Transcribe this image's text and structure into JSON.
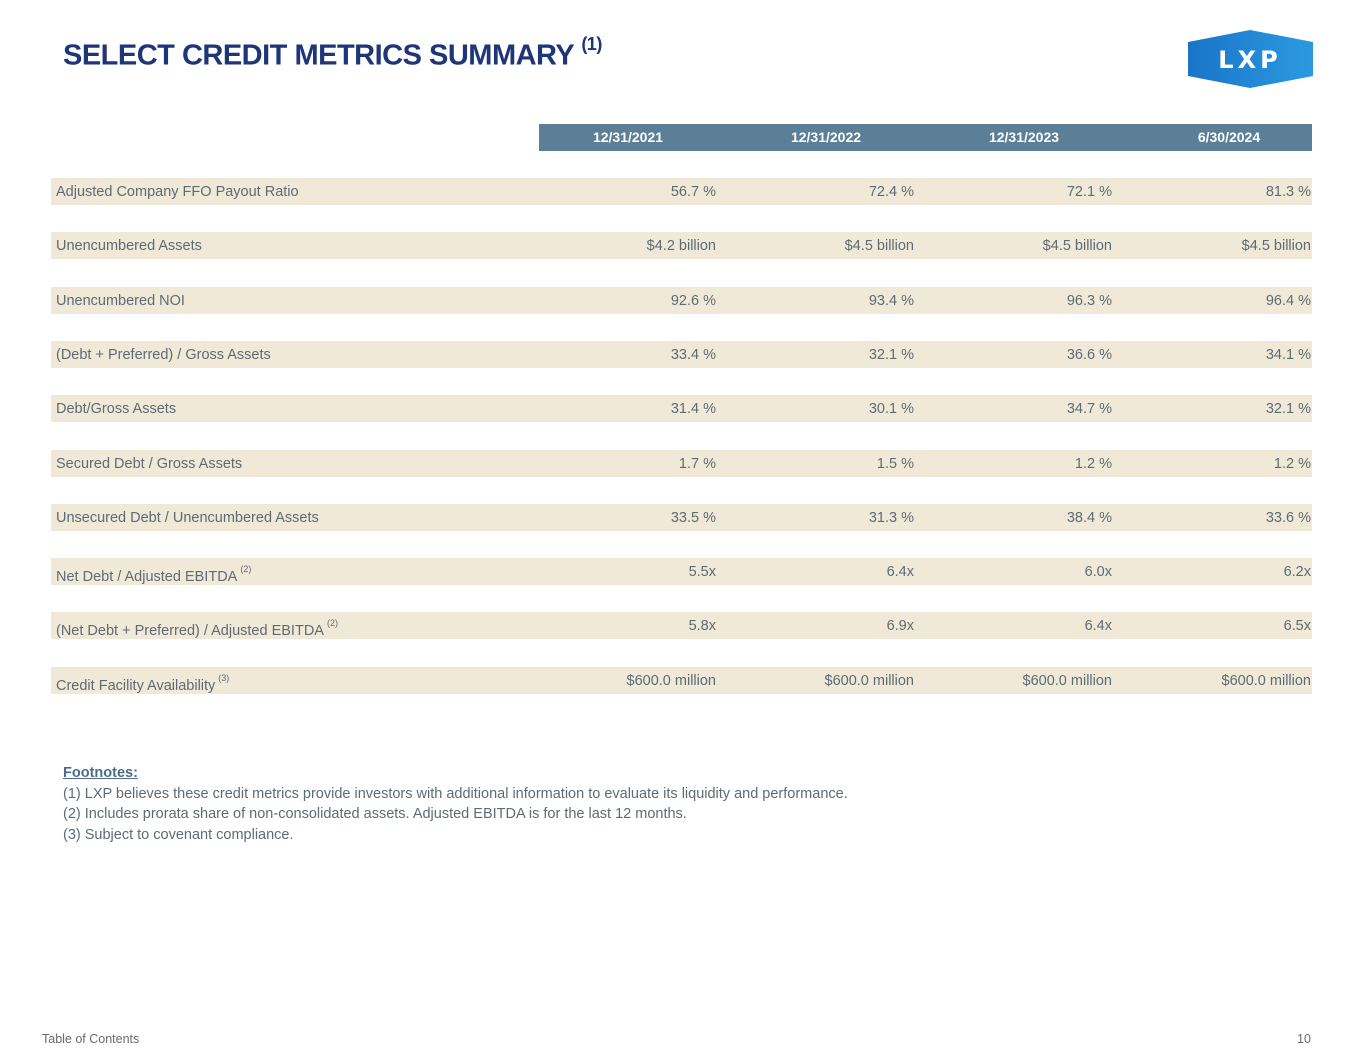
{
  "title": "SELECT CREDIT METRICS SUMMARY",
  "title_note": "(1)",
  "logo": "LXP",
  "columns": [
    "12/31/2021",
    "12/31/2022",
    "12/31/2023",
    "6/30/2024"
  ],
  "rows": [
    {
      "label": "Adjusted Company FFO Payout Ratio",
      "note": "",
      "values": [
        "56.7 %",
        "72.4 %",
        "72.1 %",
        "81.3 %"
      ]
    },
    {
      "label": "Unencumbered Assets",
      "note": "",
      "values": [
        "$4.2 billion",
        "$4.5 billion",
        "$4.5 billion",
        "$4.5 billion"
      ]
    },
    {
      "label": "Unencumbered NOI",
      "note": "",
      "values": [
        "92.6 %",
        "93.4 %",
        "96.3 %",
        "96.4 %"
      ]
    },
    {
      "label": "(Debt + Preferred) / Gross Assets",
      "note": "",
      "values": [
        "33.4 %",
        "32.1 %",
        "36.6 %",
        "34.1 %"
      ]
    },
    {
      "label": "Debt/Gross Assets",
      "note": "",
      "values": [
        "31.4 %",
        "30.1 %",
        "34.7 %",
        "32.1 %"
      ]
    },
    {
      "label": "Secured Debt / Gross Assets",
      "note": "",
      "values": [
        "1.7 %",
        "1.5 %",
        "1.2 %",
        "1.2 %"
      ]
    },
    {
      "label": "Unsecured Debt / Unencumbered Assets",
      "note": "",
      "values": [
        "33.5 %",
        "31.3 %",
        "38.4 %",
        "33.6 %"
      ]
    },
    {
      "label": "Net Debt / Adjusted EBITDA",
      "note": "(2)",
      "values": [
        "5.5x",
        "6.4x",
        "6.0x",
        "6.2x"
      ]
    },
    {
      "label": "(Net Debt + Preferred) / Adjusted EBITDA",
      "note": "(2)",
      "values": [
        "5.8x",
        "6.9x",
        "6.4x",
        "6.5x"
      ]
    },
    {
      "label": "Credit Facility Availability",
      "note": "(3)",
      "values": [
        "$600.0 million",
        "$600.0 million",
        "$600.0 million",
        "$600.0 million"
      ]
    }
  ],
  "footnotes": {
    "heading": "Footnotes:",
    "items": [
      "(1)  LXP believes these credit metrics provide investors with additional information to evaluate its liquidity and performance.",
      "(2)  Includes prorata share of non-consolidated assets. Adjusted EBITDA is for the last 12 months.",
      "(3)  Subject to covenant compliance."
    ]
  },
  "footer": {
    "toc": "Table of Contents",
    "page": "10"
  }
}
